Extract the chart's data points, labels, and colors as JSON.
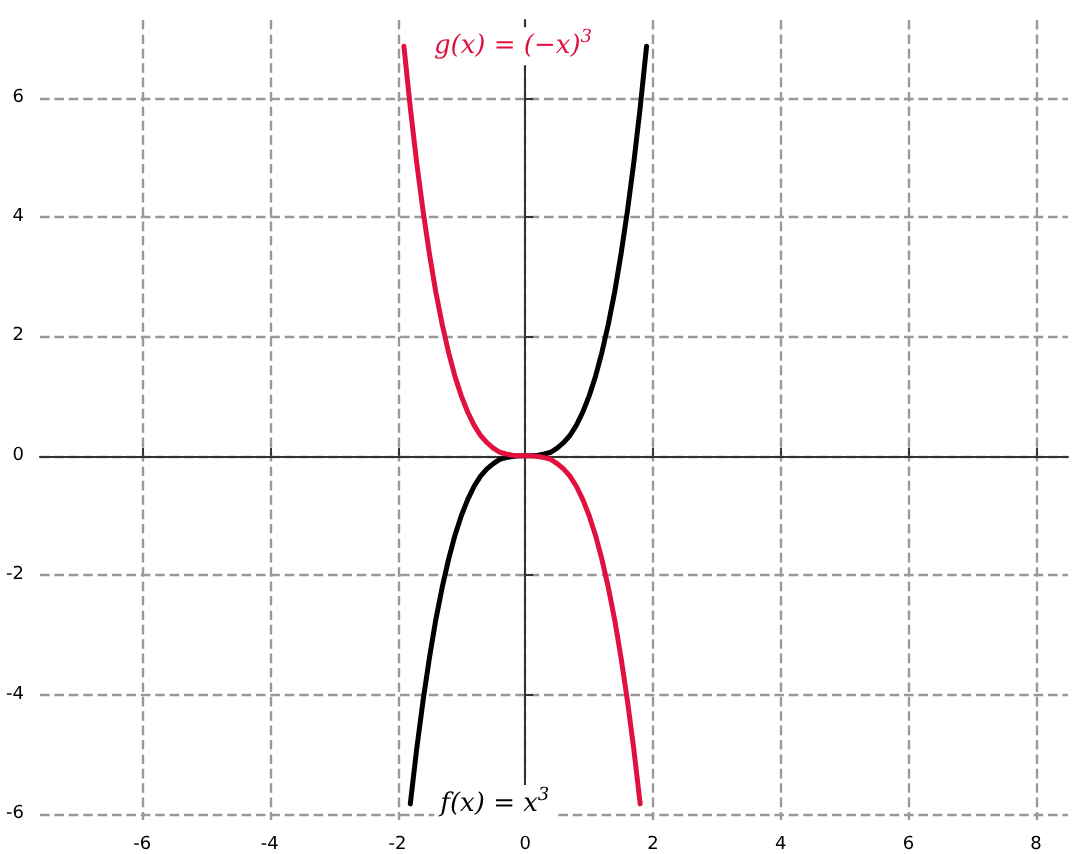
{
  "chart_data": {
    "type": "line",
    "xlim": [
      -7.6,
      8.5
    ],
    "ylim": [
      -6.1,
      7.3
    ],
    "xticks": [
      -6,
      -4,
      -2,
      0,
      2,
      4,
      6,
      8
    ],
    "yticks": [
      -6,
      -4,
      -2,
      0,
      2,
      4,
      6
    ],
    "grid": true,
    "marker": "none",
    "line_style": "solid",
    "series": [
      {
        "name": "f(x) = x$^{3}$",
        "color": "#000000",
        "x": [
          -1.8,
          -1.7,
          -1.6,
          -1.5,
          -1.4,
          -1.3,
          -1.2,
          -1.1,
          -1.0,
          -0.9,
          -0.8,
          -0.7,
          -0.6,
          -0.5,
          -0.4,
          -0.3,
          -0.2,
          -0.1,
          0,
          0.1,
          0.2,
          0.3,
          0.4,
          0.5,
          0.6,
          0.7,
          0.8,
          0.9,
          1.0,
          1.1,
          1.2,
          1.3,
          1.4,
          1.5,
          1.6,
          1.7,
          1.8,
          1.9
        ],
        "values": [
          -5.83,
          -4.91,
          -4.1,
          -3.38,
          -2.74,
          -2.2,
          -1.73,
          -1.33,
          -1,
          -0.73,
          -0.51,
          -0.34,
          -0.22,
          -0.13,
          -0.06,
          -0.03,
          -0.01,
          0,
          0,
          0,
          0.01,
          0.03,
          0.06,
          0.13,
          0.22,
          0.34,
          0.51,
          0.73,
          1,
          1.33,
          1.73,
          2.2,
          2.74,
          3.38,
          4.1,
          4.91,
          5.83,
          6.86
        ]
      },
      {
        "name": "g(x) = (−x)$^{3}$",
        "color": "#e0103f",
        "x": [
          -1.9,
          -1.8,
          -1.7,
          -1.6,
          -1.5,
          -1.4,
          -1.3,
          -1.2,
          -1.1,
          -1.0,
          -0.9,
          -0.8,
          -0.7,
          -0.6,
          -0.5,
          -0.4,
          -0.3,
          -0.2,
          -0.1,
          0,
          0.1,
          0.2,
          0.3,
          0.4,
          0.5,
          0.6,
          0.7,
          0.8,
          0.9,
          1.0,
          1.1,
          1.2,
          1.3,
          1.4,
          1.5,
          1.6,
          1.7,
          1.8
        ],
        "values": [
          6.86,
          5.83,
          4.91,
          4.1,
          3.38,
          2.74,
          2.2,
          1.73,
          1.33,
          1,
          0.73,
          0.51,
          0.34,
          0.22,
          0.13,
          0.06,
          0.03,
          0.01,
          0,
          0,
          0,
          -0.01,
          -0.03,
          -0.06,
          -0.13,
          -0.22,
          -0.34,
          -0.51,
          -0.73,
          -1,
          -1.33,
          -1.73,
          -2.2,
          -2.74,
          -3.38,
          -4.1,
          -4.91,
          -5.83
        ]
      }
    ]
  }
}
